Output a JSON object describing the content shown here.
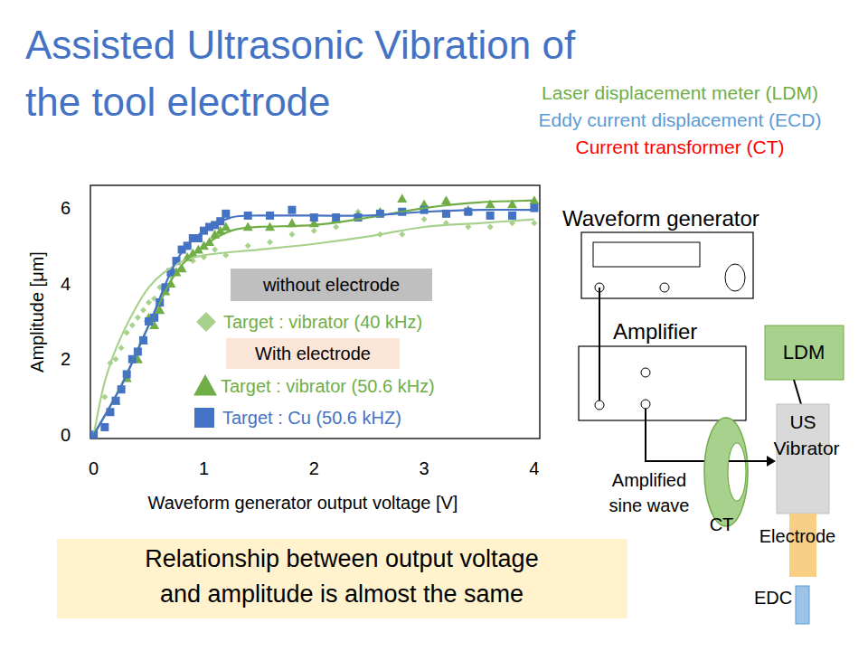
{
  "slide": {
    "title": [
      "Assisted Ultrasonic Vibration of",
      "the tool electrode"
    ],
    "notes": [
      {
        "text": "Laser displacement meter (LDM)",
        "color": "#70ad47"
      },
      {
        "text": "Eddy current displacement (ECD)",
        "color": "#5b9bd5"
      },
      {
        "text": "Current transformer (CT)",
        "color": "#ff0000"
      }
    ],
    "caption": [
      "Relationship between output voltage",
      "and amplitude is almost the same"
    ]
  },
  "diagram": {
    "waveform_generator": "Waveform generator",
    "amplifier": "Amplifier",
    "ldm": "LDM",
    "vibrator": [
      "US",
      "Vibrator"
    ],
    "signal": [
      "Amplified",
      "sine wave"
    ],
    "ct": "CT",
    "electrode": "Electrode",
    "edc": "EDC"
  },
  "chart_data": {
    "type": "scatter",
    "x_label": "Waveform generator output voltage [V]",
    "y_label": "Amplitude [μm]",
    "xlim": [
      -0.03,
      4.05
    ],
    "ylim": [
      -0.1,
      6.6
    ],
    "xticks": [
      0,
      1,
      2,
      3,
      4
    ],
    "yticks": [
      0,
      2,
      4,
      6
    ],
    "grid": false,
    "legend": "center",
    "legend_groups": [
      {
        "label": "without electrode",
        "color": "#bfbfbf"
      },
      {
        "label": "With electrode",
        "color": "#fbe5d6"
      }
    ],
    "series": [
      {
        "name": "Target : vibrator (40 kHz)",
        "color": "#a9d18e",
        "marker": "diamond",
        "x": [
          0,
          0.1,
          0.15,
          0.2,
          0.25,
          0.3,
          0.35,
          0.4,
          0.45,
          0.5,
          0.55,
          0.6,
          0.7,
          0.8,
          0.9,
          1.0,
          1.1,
          1.2,
          1.4,
          1.6,
          1.8,
          2.0,
          2.2,
          2.4,
          2.6,
          2.8,
          3.0,
          3.2,
          3.4,
          3.6,
          3.8,
          4.0
        ],
        "values": [
          0,
          1.0,
          1.9,
          2.0,
          2.3,
          2.7,
          2.9,
          3.1,
          3.3,
          3.5,
          3.6,
          3.9,
          4.2,
          4.4,
          4.6,
          4.7,
          4.9,
          4.75,
          5.0,
          5.1,
          5.3,
          5.4,
          5.5,
          5.9,
          5.3,
          5.3,
          5.7,
          5.6,
          5.5,
          5.5,
          5.6,
          5.6
        ],
        "trend": {
          "x": [
            0,
            0.1,
            0.25,
            0.5,
            0.75,
            1,
            1.5,
            2,
            2.5,
            3,
            3.5,
            4
          ],
          "values": [
            0,
            1.4,
            2.6,
            3.9,
            4.5,
            4.75,
            4.9,
            5.05,
            5.25,
            5.5,
            5.6,
            5.7
          ]
        }
      },
      {
        "name": "Target : vibrator (50.6 kHz)",
        "color": "#70ad47",
        "marker": "triangle",
        "x": [
          0,
          0.2,
          0.3,
          0.4,
          0.45,
          0.5,
          0.55,
          0.6,
          0.65,
          0.7,
          0.75,
          0.8,
          0.85,
          0.9,
          0.95,
          1.0,
          1.05,
          1.1,
          1.15,
          1.2,
          1.4,
          1.6,
          1.8,
          2.0,
          2.2,
          2.4,
          2.6,
          2.8,
          3.0,
          3.2,
          3.4,
          3.6,
          3.8,
          4.0
        ],
        "values": [
          0,
          0.9,
          1.5,
          2.0,
          2.5,
          3.1,
          2.9,
          3.3,
          3.8,
          4.0,
          4.3,
          4.4,
          4.7,
          4.8,
          4.9,
          5.0,
          5.1,
          5.3,
          5.4,
          5.5,
          5.5,
          5.5,
          5.6,
          5.6,
          5.7,
          5.8,
          5.9,
          6.25,
          6.1,
          6.2,
          5.95,
          6.1,
          6.1,
          6.2
        ],
        "trend": {
          "x": [
            0,
            0.25,
            0.5,
            0.75,
            1,
            1.25,
            1.5,
            2,
            2.5,
            3,
            3.5,
            4
          ],
          "values": [
            0,
            1.3,
            2.9,
            4.3,
            5.0,
            5.4,
            5.5,
            5.55,
            5.75,
            6.0,
            6.15,
            6.2
          ]
        }
      },
      {
        "name": "Target : Cu (50.6 kHZ)",
        "color": "#4472c4",
        "marker": "square",
        "x": [
          0,
          0.1,
          0.15,
          0.2,
          0.25,
          0.3,
          0.35,
          0.4,
          0.45,
          0.5,
          0.55,
          0.6,
          0.65,
          0.7,
          0.75,
          0.8,
          0.85,
          0.9,
          0.95,
          1.0,
          1.05,
          1.1,
          1.15,
          1.2,
          1.4,
          1.6,
          1.8,
          2.0,
          2.2,
          2.4,
          2.6,
          2.8,
          3.0,
          3.2,
          3.4,
          3.6,
          3.8,
          4.0
        ],
        "values": [
          0,
          0.2,
          0.6,
          0.9,
          1.2,
          1.6,
          2.0,
          2.2,
          2.5,
          3.0,
          3.1,
          3.5,
          3.9,
          4.3,
          4.6,
          4.9,
          5.0,
          5.2,
          5.2,
          5.4,
          5.5,
          5.55,
          5.65,
          5.85,
          5.8,
          5.8,
          5.95,
          5.75,
          5.75,
          5.75,
          5.85,
          5.9,
          5.95,
          5.85,
          5.9,
          5.8,
          5.8,
          6.0
        ],
        "trend": {
          "x": [
            0,
            0.25,
            0.5,
            0.75,
            1,
            1.25,
            1.5,
            2,
            2.5,
            3,
            3.5,
            4
          ],
          "values": [
            0,
            1.3,
            2.9,
            4.6,
            5.4,
            5.75,
            5.8,
            5.8,
            5.8,
            5.9,
            5.95,
            5.95
          ]
        }
      }
    ]
  }
}
